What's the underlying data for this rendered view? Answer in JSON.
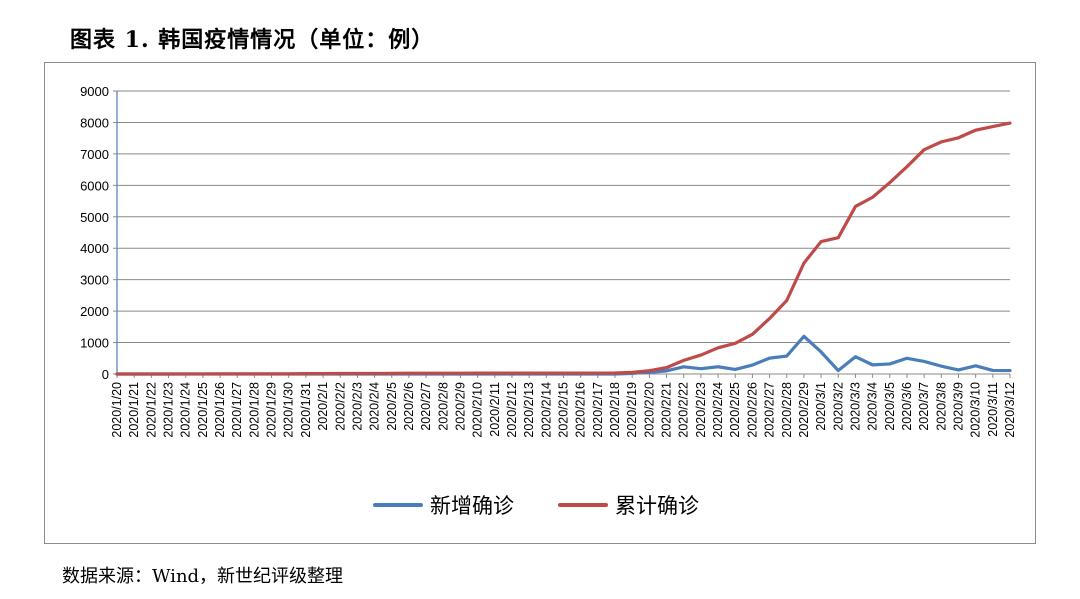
{
  "figure_title": "图表 1.   韩国疫情情况（单位：例）",
  "source": "数据来源：Wind，新世纪评级整理",
  "chart_data": {
    "type": "line",
    "title": "",
    "xlabel": "",
    "ylabel": "",
    "ylim": [
      0,
      9000
    ],
    "yticks": [
      "0",
      "1000",
      "2000",
      "3000",
      "4000",
      "5000",
      "6000",
      "7000",
      "8000",
      "9000"
    ],
    "grid": true,
    "legend_position": "bottom",
    "x": [
      "2020/1/20",
      "2020/1/21",
      "2020/1/22",
      "2020/1/23",
      "2020/1/24",
      "2020/1/25",
      "2020/1/26",
      "2020/1/27",
      "2020/1/28",
      "2020/1/29",
      "2020/1/30",
      "2020/1/31",
      "2020/2/1",
      "2020/2/2",
      "2020/2/3",
      "2020/2/4",
      "2020/2/5",
      "2020/2/6",
      "2020/2/7",
      "2020/2/8",
      "2020/2/9",
      "2020/2/10",
      "2020/2/11",
      "2020/2/12",
      "2020/2/13",
      "2020/2/14",
      "2020/2/15",
      "2020/2/16",
      "2020/2/17",
      "2020/2/18",
      "2020/2/19",
      "2020/2/20",
      "2020/2/21",
      "2020/2/22",
      "2020/2/23",
      "2020/2/24",
      "2020/2/25",
      "2020/2/26",
      "2020/2/27",
      "2020/2/28",
      "2020/2/29",
      "2020/3/1",
      "2020/3/2",
      "2020/3/3",
      "2020/3/4",
      "2020/3/5",
      "2020/3/6",
      "2020/3/7",
      "2020/3/8",
      "2020/3/9",
      "2020/3/10",
      "2020/3/11",
      "2020/3/12"
    ],
    "series": [
      {
        "name": "新增确诊",
        "color": "#4a7ebb",
        "values": [
          1,
          0,
          0,
          0,
          1,
          0,
          1,
          1,
          0,
          0,
          0,
          0,
          0,
          0,
          1,
          0,
          0,
          0,
          0,
          0,
          0,
          0,
          0,
          0,
          0,
          0,
          0,
          0,
          0,
          0,
          20,
          53,
          100,
          229,
          169,
          231,
          144,
          284,
          505,
          571,
          1200,
          700,
          110,
          550,
          290,
          320,
          500,
          400,
          250,
          130,
          260,
          114,
          110
        ]
      },
      {
        "name": "累计确诊",
        "color": "#be4b48",
        "values": [
          1,
          1,
          1,
          1,
          2,
          2,
          3,
          4,
          4,
          4,
          4,
          11,
          12,
          15,
          15,
          16,
          19,
          23,
          24,
          24,
          25,
          27,
          28,
          28,
          28,
          28,
          28,
          29,
          30,
          31,
          51,
          104,
          204,
          433,
          602,
          833,
          977,
          1261,
          1766,
          2337,
          3526,
          4212,
          4335,
          5328,
          5621,
          6088,
          6593,
          7134,
          7382,
          7513,
          7755,
          7869,
          7979
        ]
      }
    ]
  }
}
